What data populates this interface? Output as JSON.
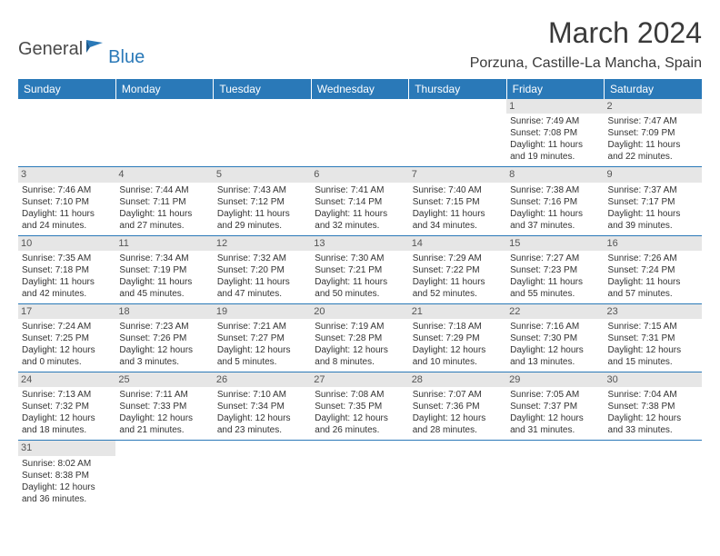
{
  "logo": {
    "part1": "General",
    "part2": "Blue"
  },
  "title": "March 2024",
  "location": "Porzuna, Castille-La Mancha, Spain",
  "colors": {
    "header_bg": "#2a79b8",
    "header_text": "#ffffff",
    "daynum_bg": "#e6e6e6",
    "border": "#2a79b8"
  },
  "day_headers": [
    "Sunday",
    "Monday",
    "Tuesday",
    "Wednesday",
    "Thursday",
    "Friday",
    "Saturday"
  ],
  "weeks": [
    [
      null,
      null,
      null,
      null,
      null,
      {
        "n": "1",
        "sr": "Sunrise: 7:49 AM",
        "ss": "Sunset: 7:08 PM",
        "d1": "Daylight: 11 hours",
        "d2": "and 19 minutes."
      },
      {
        "n": "2",
        "sr": "Sunrise: 7:47 AM",
        "ss": "Sunset: 7:09 PM",
        "d1": "Daylight: 11 hours",
        "d2": "and 22 minutes."
      }
    ],
    [
      {
        "n": "3",
        "sr": "Sunrise: 7:46 AM",
        "ss": "Sunset: 7:10 PM",
        "d1": "Daylight: 11 hours",
        "d2": "and 24 minutes."
      },
      {
        "n": "4",
        "sr": "Sunrise: 7:44 AM",
        "ss": "Sunset: 7:11 PM",
        "d1": "Daylight: 11 hours",
        "d2": "and 27 minutes."
      },
      {
        "n": "5",
        "sr": "Sunrise: 7:43 AM",
        "ss": "Sunset: 7:12 PM",
        "d1": "Daylight: 11 hours",
        "d2": "and 29 minutes."
      },
      {
        "n": "6",
        "sr": "Sunrise: 7:41 AM",
        "ss": "Sunset: 7:14 PM",
        "d1": "Daylight: 11 hours",
        "d2": "and 32 minutes."
      },
      {
        "n": "7",
        "sr": "Sunrise: 7:40 AM",
        "ss": "Sunset: 7:15 PM",
        "d1": "Daylight: 11 hours",
        "d2": "and 34 minutes."
      },
      {
        "n": "8",
        "sr": "Sunrise: 7:38 AM",
        "ss": "Sunset: 7:16 PM",
        "d1": "Daylight: 11 hours",
        "d2": "and 37 minutes."
      },
      {
        "n": "9",
        "sr": "Sunrise: 7:37 AM",
        "ss": "Sunset: 7:17 PM",
        "d1": "Daylight: 11 hours",
        "d2": "and 39 minutes."
      }
    ],
    [
      {
        "n": "10",
        "sr": "Sunrise: 7:35 AM",
        "ss": "Sunset: 7:18 PM",
        "d1": "Daylight: 11 hours",
        "d2": "and 42 minutes."
      },
      {
        "n": "11",
        "sr": "Sunrise: 7:34 AM",
        "ss": "Sunset: 7:19 PM",
        "d1": "Daylight: 11 hours",
        "d2": "and 45 minutes."
      },
      {
        "n": "12",
        "sr": "Sunrise: 7:32 AM",
        "ss": "Sunset: 7:20 PM",
        "d1": "Daylight: 11 hours",
        "d2": "and 47 minutes."
      },
      {
        "n": "13",
        "sr": "Sunrise: 7:30 AM",
        "ss": "Sunset: 7:21 PM",
        "d1": "Daylight: 11 hours",
        "d2": "and 50 minutes."
      },
      {
        "n": "14",
        "sr": "Sunrise: 7:29 AM",
        "ss": "Sunset: 7:22 PM",
        "d1": "Daylight: 11 hours",
        "d2": "and 52 minutes."
      },
      {
        "n": "15",
        "sr": "Sunrise: 7:27 AM",
        "ss": "Sunset: 7:23 PM",
        "d1": "Daylight: 11 hours",
        "d2": "and 55 minutes."
      },
      {
        "n": "16",
        "sr": "Sunrise: 7:26 AM",
        "ss": "Sunset: 7:24 PM",
        "d1": "Daylight: 11 hours",
        "d2": "and 57 minutes."
      }
    ],
    [
      {
        "n": "17",
        "sr": "Sunrise: 7:24 AM",
        "ss": "Sunset: 7:25 PM",
        "d1": "Daylight: 12 hours",
        "d2": "and 0 minutes."
      },
      {
        "n": "18",
        "sr": "Sunrise: 7:23 AM",
        "ss": "Sunset: 7:26 PM",
        "d1": "Daylight: 12 hours",
        "d2": "and 3 minutes."
      },
      {
        "n": "19",
        "sr": "Sunrise: 7:21 AM",
        "ss": "Sunset: 7:27 PM",
        "d1": "Daylight: 12 hours",
        "d2": "and 5 minutes."
      },
      {
        "n": "20",
        "sr": "Sunrise: 7:19 AM",
        "ss": "Sunset: 7:28 PM",
        "d1": "Daylight: 12 hours",
        "d2": "and 8 minutes."
      },
      {
        "n": "21",
        "sr": "Sunrise: 7:18 AM",
        "ss": "Sunset: 7:29 PM",
        "d1": "Daylight: 12 hours",
        "d2": "and 10 minutes."
      },
      {
        "n": "22",
        "sr": "Sunrise: 7:16 AM",
        "ss": "Sunset: 7:30 PM",
        "d1": "Daylight: 12 hours",
        "d2": "and 13 minutes."
      },
      {
        "n": "23",
        "sr": "Sunrise: 7:15 AM",
        "ss": "Sunset: 7:31 PM",
        "d1": "Daylight: 12 hours",
        "d2": "and 15 minutes."
      }
    ],
    [
      {
        "n": "24",
        "sr": "Sunrise: 7:13 AM",
        "ss": "Sunset: 7:32 PM",
        "d1": "Daylight: 12 hours",
        "d2": "and 18 minutes."
      },
      {
        "n": "25",
        "sr": "Sunrise: 7:11 AM",
        "ss": "Sunset: 7:33 PM",
        "d1": "Daylight: 12 hours",
        "d2": "and 21 minutes."
      },
      {
        "n": "26",
        "sr": "Sunrise: 7:10 AM",
        "ss": "Sunset: 7:34 PM",
        "d1": "Daylight: 12 hours",
        "d2": "and 23 minutes."
      },
      {
        "n": "27",
        "sr": "Sunrise: 7:08 AM",
        "ss": "Sunset: 7:35 PM",
        "d1": "Daylight: 12 hours",
        "d2": "and 26 minutes."
      },
      {
        "n": "28",
        "sr": "Sunrise: 7:07 AM",
        "ss": "Sunset: 7:36 PM",
        "d1": "Daylight: 12 hours",
        "d2": "and 28 minutes."
      },
      {
        "n": "29",
        "sr": "Sunrise: 7:05 AM",
        "ss": "Sunset: 7:37 PM",
        "d1": "Daylight: 12 hours",
        "d2": "and 31 minutes."
      },
      {
        "n": "30",
        "sr": "Sunrise: 7:04 AM",
        "ss": "Sunset: 7:38 PM",
        "d1": "Daylight: 12 hours",
        "d2": "and 33 minutes."
      }
    ],
    [
      {
        "n": "31",
        "sr": "Sunrise: 8:02 AM",
        "ss": "Sunset: 8:38 PM",
        "d1": "Daylight: 12 hours",
        "d2": "and 36 minutes."
      },
      null,
      null,
      null,
      null,
      null,
      null
    ]
  ]
}
